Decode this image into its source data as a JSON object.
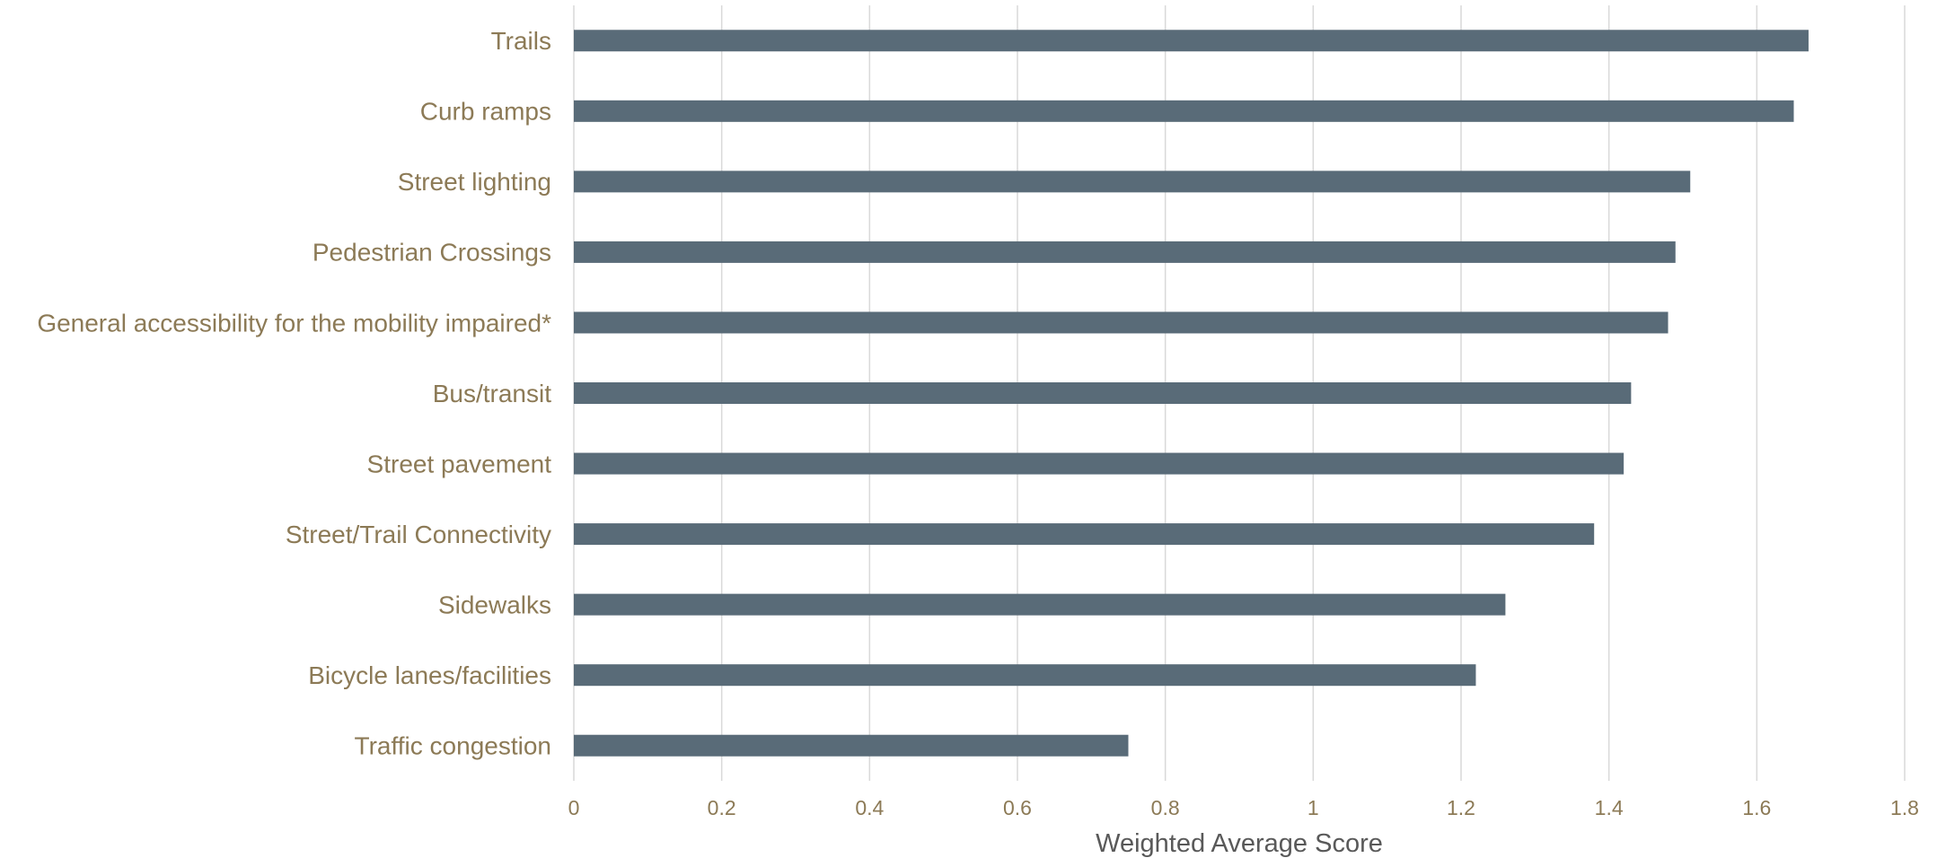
{
  "chart_data": {
    "type": "bar",
    "orientation": "horizontal",
    "categories": [
      "Trails",
      "Curb ramps",
      "Street lighting",
      "Pedestrian Crossings",
      "General accessibility for the mobility impaired*",
      "Bus/transit",
      "Street pavement",
      "Street/Trail Connectivity",
      "Sidewalks",
      "Bicycle lanes/facilities",
      "Traffic congestion"
    ],
    "values": [
      1.67,
      1.65,
      1.51,
      1.49,
      1.48,
      1.43,
      1.42,
      1.38,
      1.26,
      1.22,
      0.75
    ],
    "xlabel": "Weighted Average Score",
    "ylabel": "",
    "xlim": [
      0,
      1.8
    ],
    "xticks": [
      "0",
      "0.2",
      "0.4",
      "0.6",
      "0.8",
      "1",
      "1.2",
      "1.4",
      "1.6",
      "1.8"
    ],
    "grid": true,
    "colors": {
      "bar": "#596b78",
      "category_text": "#8c7a56",
      "tick_text": "#8c7a56",
      "axis_title": "#595959",
      "grid": "#d9d9d9"
    }
  }
}
